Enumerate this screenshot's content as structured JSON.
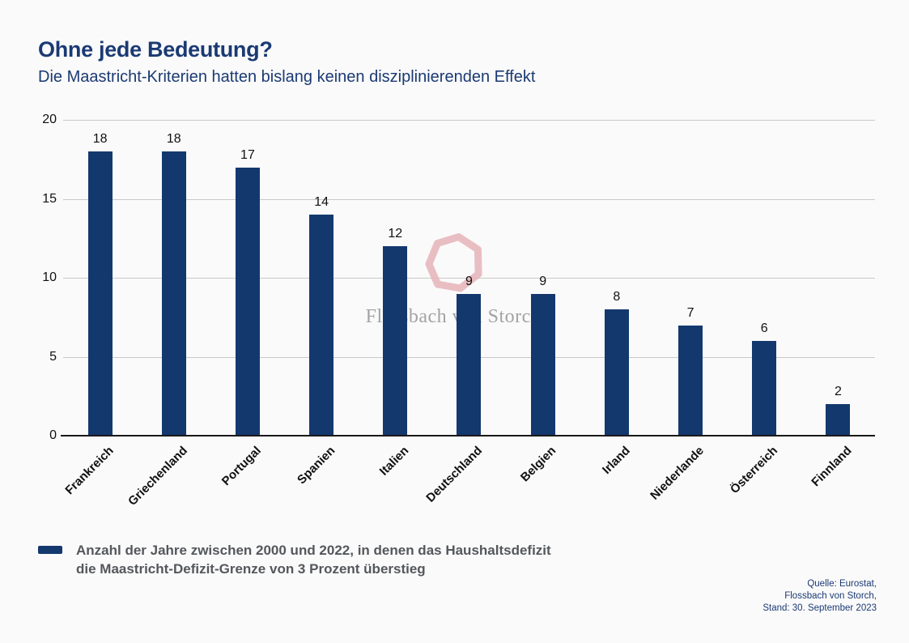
{
  "header": {
    "title": "Ohne jede Bedeutung?",
    "subtitle": "Die Maastricht-Kriterien hatten bislang keinen disziplinierenden Effekt"
  },
  "chart_data": {
    "type": "bar",
    "title": "Ohne jede Bedeutung?",
    "subtitle": "Die Maastricht-Kriterien hatten bislang keinen disziplinierenden Effekt",
    "categories": [
      "Frankreich",
      "Griechenland",
      "Portugal",
      "Spanien",
      "Italien",
      "Deutschland",
      "Belgien",
      "Irland",
      "Niederlande",
      "Österreich",
      "Finnland"
    ],
    "values": [
      18,
      18,
      17,
      14,
      12,
      9,
      9,
      8,
      7,
      6,
      2
    ],
    "xlabel": "",
    "ylabel": "",
    "ylim": [
      0,
      20
    ],
    "yticks": [
      0,
      5,
      10,
      15,
      20
    ],
    "grid": "horizontal",
    "bar_color": "#13386e",
    "value_labels_shown": true,
    "x_label_rotation_deg": 45,
    "legend_position": "bottom-left"
  },
  "legend": {
    "swatch_color": "#13386e",
    "line1": "Anzahl der Jahre zwischen 2000 und 2022, in denen das Haushaltsdefizit",
    "line2": "die Maastricht-Defizit-Grenze von 3 Prozent überstieg"
  },
  "source": {
    "line1": "Quelle: Eurostat,",
    "line2": "Flossbach von Storch,",
    "line3": "Stand: 30. September 2023"
  },
  "watermark": {
    "text": "Flossbach von Storch",
    "ring_color": "#e7b6bc",
    "text_color": "#a3a3a3"
  },
  "colors": {
    "background": "#fafafa",
    "title_text": "#1b3a73",
    "bar": "#13386e",
    "gridline": "#c9c9c9",
    "axis_line": "#1a1a1a",
    "legend_text": "#54575b",
    "tick_text": "#111111"
  }
}
